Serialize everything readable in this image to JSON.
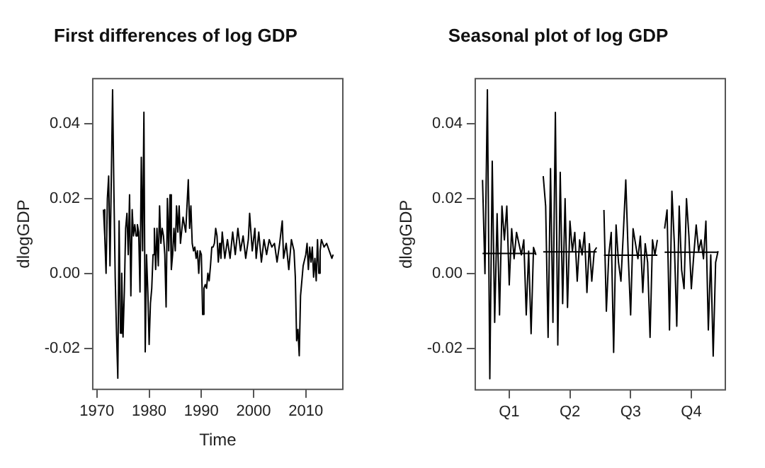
{
  "chart_data": [
    {
      "type": "line",
      "title": "First differences of log GDP",
      "xlabel": "Time",
      "ylabel": "dlogGDP",
      "marker": "none",
      "line_style": "solid",
      "grid": false,
      "xlim": [
        1969.2,
        2017.1
      ],
      "xticks": [
        1970,
        1980,
        1990,
        2000,
        2010
      ],
      "ylim": [
        -0.031,
        0.052
      ],
      "yticks": [
        {
          "value": -0.02,
          "label": "-0.02"
        },
        {
          "value": 0,
          "label": "0.00"
        },
        {
          "value": 0.02,
          "label": "0.02"
        },
        {
          "value": 0.04,
          "label": "0.04"
        }
      ],
      "series": [
        {
          "color": "#000000",
          "x": [
            1971.25,
            1971.5,
            1971.75,
            1972,
            1972.25,
            1972.5,
            1972.75,
            1973,
            1973.25,
            1973.5,
            1973.75,
            1974,
            1974.25,
            1974.5,
            1974.75,
            1975,
            1975.25,
            1975.5,
            1975.75,
            1976,
            1976.25,
            1976.5,
            1976.75,
            1977,
            1977.25,
            1977.5,
            1977.75,
            1978,
            1978.25,
            1978.5,
            1978.75,
            1979,
            1979.25,
            1979.5,
            1979.75,
            1980,
            1980.25,
            1980.5,
            1980.75,
            1981,
            1981.25,
            1981.5,
            1981.75,
            1982,
            1982.25,
            1982.5,
            1982.75,
            1983,
            1983.25,
            1983.5,
            1983.75,
            1984,
            1984.25,
            1984.5,
            1984.75,
            1985,
            1985.25,
            1985.5,
            1985.75,
            1986,
            1986.5,
            1987,
            1987.5,
            1987.75,
            1988,
            1988.25,
            1988.5,
            1988.75,
            1989,
            1989.25,
            1989.5,
            1989.75,
            1990,
            1990.25,
            1990.5,
            1990.75,
            1991,
            1991.25,
            1991.5,
            1991.75,
            1992,
            1992.25,
            1992.5,
            1992.75,
            1993,
            1993.25,
            1993.5,
            1993.75,
            1994,
            1994.5,
            1995,
            1995.5,
            1996,
            1996.5,
            1997,
            1997.5,
            1998,
            1998.5,
            1999,
            1999.25,
            1999.75,
            2000.25,
            2000.5,
            2001,
            2001.5,
            2002,
            2002.5,
            2003,
            2003.5,
            2004,
            2004.5,
            2005,
            2005.5,
            2005.75,
            2006.25,
            2006.75,
            2007.25,
            2007.75,
            2008,
            2008.25,
            2008.5,
            2008.75,
            2009,
            2009.5,
            2010,
            2010.25,
            2010.5,
            2010.75,
            2011,
            2011.25,
            2011.5,
            2011.75,
            2012,
            2012.25,
            2012.5,
            2012.75,
            2013,
            2013.5,
            2014,
            2014.5,
            2015,
            2015.25
          ],
          "values": [
            0.017,
            0.01,
            0.0,
            0.02,
            0.026,
            0.002,
            0.025,
            0.049,
            0.022,
            -0.001,
            -0.016,
            -0.028,
            0.014,
            -0.016,
            0.0,
            -0.017,
            -0.005,
            0.012,
            0.016,
            0.005,
            0.021,
            -0.006,
            0.017,
            0.01,
            0.013,
            0.01,
            0.013,
            0.011,
            -0.005,
            0.031,
            0.006,
            0.043,
            -0.021,
            0.005,
            -0.005,
            -0.019,
            -0.008,
            -0.004,
            0.005,
            0.012,
            0.001,
            0.012,
            0.002,
            0.018,
            0.008,
            0.012,
            0.01,
            0.005,
            -0.009,
            0.02,
            0.006,
            0.021,
            0.001,
            0.005,
            0.012,
            0.006,
            0.018,
            0.011,
            0.018,
            0.008,
            0.015,
            0.011,
            0.025,
            0.012,
            0.018,
            0.008,
            0.006,
            0.007,
            0.004,
            0.006,
            0.0,
            0.006,
            0.005,
            -0.011,
            -0.004,
            -0.003,
            -0.004,
            0.0,
            -0.002,
            0.002,
            0.007,
            0.007,
            0.008,
            0.012,
            0.01,
            0.003,
            0.008,
            0.004,
            0.011,
            0.004,
            0.009,
            0.004,
            0.011,
            0.005,
            0.012,
            0.006,
            0.01,
            0.004,
            0.009,
            0.016,
            0.006,
            0.012,
            0.004,
            0.011,
            0.003,
            0.009,
            0.005,
            0.009,
            0.007,
            0.008,
            0.003,
            0.008,
            0.014,
            0.004,
            0.008,
            0.001,
            0.009,
            0.006,
            -0.001,
            -0.018,
            -0.015,
            -0.022,
            -0.006,
            0.002,
            0.005,
            0.008,
            0.001,
            0.007,
            0.003,
            0.007,
            -0.001,
            0.004,
            -0.002,
            0.009,
            0.0,
            0.006,
            0.009,
            0.007,
            0.008,
            0.006,
            0.004,
            0.005
          ]
        }
      ]
    },
    {
      "type": "line",
      "title": "Seasonal plot of log GDP",
      "ylabel": "dlogGDP",
      "marker": "none",
      "line_style": "solid",
      "grid": false,
      "categories": [
        null,
        null,
        null,
        null,
        null,
        null,
        null,
        null,
        null,
        null,
        null,
        null,
        null,
        null,
        "Q1",
        null,
        null,
        null,
        null,
        null,
        null,
        null,
        null,
        null,
        null,
        null,
        null,
        null,
        null,
        null,
        null,
        null,
        null,
        null,
        null,
        null,
        null,
        null,
        null,
        "Q2",
        null,
        null,
        null,
        null,
        null,
        null,
        null,
        null,
        null,
        null,
        null,
        null,
        null,
        null,
        null,
        null,
        null,
        null,
        null,
        null,
        null,
        null,
        null,
        null,
        "Q3",
        null,
        null,
        null,
        null,
        null,
        null,
        null,
        null,
        null,
        null,
        null,
        null,
        null,
        null,
        null,
        null,
        null,
        null,
        null,
        null,
        null,
        null,
        null,
        null,
        "Q4",
        null,
        null,
        null,
        null,
        null,
        null,
        null,
        null,
        null,
        null,
        null,
        null,
        null,
        null
      ],
      "ylim": [
        -0.031,
        0.052
      ],
      "yticks": [
        {
          "value": -0.02,
          "label": "-0.02"
        },
        {
          "value": 0,
          "label": "0.00"
        },
        {
          "value": 0.02,
          "label": "0.02"
        },
        {
          "value": 0.04,
          "label": "0.04"
        }
      ],
      "series": [
        {
          "color": "#000000",
          "values": [
            null,
            null,
            null,
            0.025,
            0.0,
            0.049,
            -0.028,
            0.03,
            -0.013,
            0.016,
            -0.011,
            0.018,
            0.009,
            0.018,
            -0.003,
            0.012,
            0.004,
            0.011,
            0.008,
            0.005,
            0.009,
            -0.011,
            0.006,
            -0.016,
            0.007,
            0.005,
            null,
            null,
            null,
            null,
            null,
            null,
            null,
            null,
            null,
            null,
            null,
            null,
            null,
            null,
            null,
            null,
            null,
            null,
            null,
            null,
            null,
            null,
            null,
            null,
            null,
            null,
            null,
            null,
            null,
            null,
            null,
            null,
            null,
            null,
            null,
            null,
            null,
            null,
            null,
            null,
            null,
            null,
            null,
            null,
            null,
            null,
            null,
            null,
            null,
            null,
            null,
            null,
            null,
            null,
            null,
            null,
            null,
            null,
            null,
            null,
            null,
            null,
            null,
            null,
            null,
            null,
            null,
            null,
            null,
            null,
            null,
            null,
            null,
            null,
            null,
            null,
            null,
            null
          ]
        },
        {
          "color": "#000000",
          "values": [
            null,
            null,
            null,
            null,
            null,
            null,
            null,
            null,
            null,
            null,
            null,
            null,
            null,
            null,
            null,
            null,
            null,
            null,
            null,
            null,
            null,
            null,
            null,
            null,
            null,
            null,
            null,
            null,
            0.026,
            0.018,
            -0.017,
            0.028,
            -0.013,
            0.043,
            -0.019,
            0.027,
            -0.008,
            0.02,
            -0.009,
            0.014,
            0.006,
            0.011,
            -0.002,
            0.009,
            0.005,
            0.011,
            -0.005,
            0.008,
            -0.002,
            0.006,
            0.007,
            null,
            null,
            null,
            null,
            null,
            null,
            null,
            null,
            null,
            null,
            null,
            null,
            null,
            null,
            null,
            null,
            null,
            null,
            null,
            null,
            null,
            null,
            null,
            null,
            null,
            null,
            null,
            null,
            null,
            null,
            null,
            null,
            null,
            null,
            null,
            null,
            null,
            null,
            null,
            null,
            null,
            null,
            null,
            null,
            null,
            null,
            null,
            null,
            null,
            null,
            null,
            null,
            null
          ]
        },
        {
          "color": "#000000",
          "values": [
            null,
            null,
            null,
            null,
            null,
            null,
            null,
            null,
            null,
            null,
            null,
            null,
            null,
            null,
            null,
            null,
            null,
            null,
            null,
            null,
            null,
            null,
            null,
            null,
            null,
            null,
            null,
            null,
            null,
            null,
            null,
            null,
            null,
            null,
            null,
            null,
            null,
            null,
            null,
            null,
            null,
            null,
            null,
            null,
            null,
            null,
            null,
            null,
            null,
            null,
            null,
            null,
            null,
            0.017,
            -0.01,
            0.005,
            0.011,
            -0.021,
            0.013,
            0.003,
            -0.002,
            0.011,
            0.025,
            0.005,
            -0.011,
            0.012,
            0.008,
            0.004,
            0.01,
            -0.005,
            0.008,
            0.003,
            -0.017,
            0.009,
            0.005,
            0.009,
            null,
            null,
            null,
            null,
            null,
            null,
            null,
            null,
            null,
            null,
            null,
            null,
            null,
            null,
            null,
            null,
            null,
            null,
            null,
            null,
            null,
            null,
            null,
            null,
            null,
            null,
            null,
            null
          ]
        },
        {
          "color": "#000000",
          "values": [
            null,
            null,
            null,
            null,
            null,
            null,
            null,
            null,
            null,
            null,
            null,
            null,
            null,
            null,
            null,
            null,
            null,
            null,
            null,
            null,
            null,
            null,
            null,
            null,
            null,
            null,
            null,
            null,
            null,
            null,
            null,
            null,
            null,
            null,
            null,
            null,
            null,
            null,
            null,
            null,
            null,
            null,
            null,
            null,
            null,
            null,
            null,
            null,
            null,
            null,
            null,
            null,
            null,
            null,
            null,
            null,
            null,
            null,
            null,
            null,
            null,
            null,
            null,
            null,
            null,
            null,
            null,
            null,
            null,
            null,
            null,
            null,
            null,
            null,
            null,
            null,
            null,
            null,
            0.012,
            0.017,
            -0.015,
            0.022,
            0.008,
            -0.014,
            0.018,
            0.001,
            -0.004,
            0.02,
            0.01,
            -0.004,
            0.005,
            0.013,
            0.006,
            0.009,
            0.004,
            0.014,
            -0.015,
            0.005,
            -0.022,
            0.003,
            0.006,
            null,
            null,
            null
          ]
        },
        {
          "color": "#000000",
          "values": [
            null,
            null,
            null,
            0.0054,
            0.0054,
            0.0054,
            0.0054,
            0.0054,
            0.0054,
            0.0054,
            0.0054,
            0.0054,
            0.0054,
            0.0054,
            0.0054,
            0.0054,
            0.0054,
            0.0054,
            0.0054,
            0.0054,
            0.0054,
            0.0054,
            0.0054,
            0.0054,
            0.0054,
            0.0054,
            null,
            null,
            null,
            null,
            null,
            null,
            null,
            null,
            null,
            null,
            null,
            null,
            null,
            null,
            null,
            null,
            null,
            null,
            null,
            null,
            null,
            null,
            null,
            null,
            null,
            null,
            null,
            null,
            null,
            null,
            null,
            null,
            null,
            null,
            null,
            null,
            null,
            null,
            null,
            null,
            null,
            null,
            null,
            null,
            null,
            null,
            null,
            null,
            null,
            null,
            null,
            null,
            null,
            null,
            null,
            null,
            null,
            null,
            null,
            null,
            null,
            null,
            null,
            null,
            null,
            null,
            null,
            null,
            null,
            null,
            null,
            null,
            null,
            null,
            null,
            null,
            null,
            null
          ]
        },
        {
          "color": "#000000",
          "values": [
            null,
            null,
            null,
            null,
            null,
            null,
            null,
            null,
            null,
            null,
            null,
            null,
            null,
            null,
            null,
            null,
            null,
            null,
            null,
            null,
            null,
            null,
            null,
            null,
            null,
            null,
            null,
            null,
            0.0058,
            0.0058,
            0.0058,
            0.0058,
            0.0058,
            0.0058,
            0.0058,
            0.0058,
            0.0058,
            0.0058,
            0.0058,
            0.0058,
            0.0058,
            0.0058,
            0.0058,
            0.0058,
            0.0058,
            0.0058,
            0.0058,
            0.0058,
            0.0058,
            0.0058,
            0.0058,
            null,
            null,
            null,
            null,
            null,
            null,
            null,
            null,
            null,
            null,
            null,
            null,
            null,
            null,
            null,
            null,
            null,
            null,
            null,
            null,
            null,
            null,
            null,
            null,
            null,
            null,
            null,
            null,
            null,
            null,
            null,
            null,
            null,
            null,
            null,
            null,
            null,
            null,
            null,
            null,
            null,
            null,
            null,
            null,
            null,
            null,
            null,
            null,
            null,
            null,
            null,
            null,
            null
          ]
        },
        {
          "color": "#000000",
          "values": [
            null,
            null,
            null,
            null,
            null,
            null,
            null,
            null,
            null,
            null,
            null,
            null,
            null,
            null,
            null,
            null,
            null,
            null,
            null,
            null,
            null,
            null,
            null,
            null,
            null,
            null,
            null,
            null,
            null,
            null,
            null,
            null,
            null,
            null,
            null,
            null,
            null,
            null,
            null,
            null,
            null,
            null,
            null,
            null,
            null,
            null,
            null,
            null,
            null,
            null,
            null,
            null,
            null,
            0.0049,
            0.0049,
            0.0049,
            0.0049,
            0.0049,
            0.0049,
            0.0049,
            0.0049,
            0.0049,
            0.0049,
            0.0049,
            0.0049,
            0.0049,
            0.0049,
            0.0049,
            0.0049,
            0.0049,
            0.0049,
            0.0049,
            0.0049,
            0.0049,
            0.0049,
            0.0049,
            null,
            null,
            null,
            null,
            null,
            null,
            null,
            null,
            null,
            null,
            null,
            null,
            null,
            null,
            null,
            null,
            null,
            null,
            null,
            null,
            null,
            null,
            null,
            null,
            null,
            null,
            null,
            null
          ]
        },
        {
          "color": "#000000",
          "values": [
            null,
            null,
            null,
            null,
            null,
            null,
            null,
            null,
            null,
            null,
            null,
            null,
            null,
            null,
            null,
            null,
            null,
            null,
            null,
            null,
            null,
            null,
            null,
            null,
            null,
            null,
            null,
            null,
            null,
            null,
            null,
            null,
            null,
            null,
            null,
            null,
            null,
            null,
            null,
            null,
            null,
            null,
            null,
            null,
            null,
            null,
            null,
            null,
            null,
            null,
            null,
            null,
            null,
            null,
            null,
            null,
            null,
            null,
            null,
            null,
            null,
            null,
            null,
            null,
            null,
            null,
            null,
            null,
            null,
            null,
            null,
            null,
            null,
            null,
            null,
            null,
            null,
            null,
            0.0057,
            0.0057,
            0.0057,
            0.0057,
            0.0057,
            0.0057,
            0.0057,
            0.0057,
            0.0057,
            0.0057,
            0.0057,
            0.0057,
            0.0057,
            0.0057,
            0.0057,
            0.0057,
            0.0057,
            0.0057,
            0.0057,
            0.0057,
            0.0057,
            0.0057,
            0.0057,
            null,
            null,
            null
          ]
        }
      ]
    }
  ]
}
